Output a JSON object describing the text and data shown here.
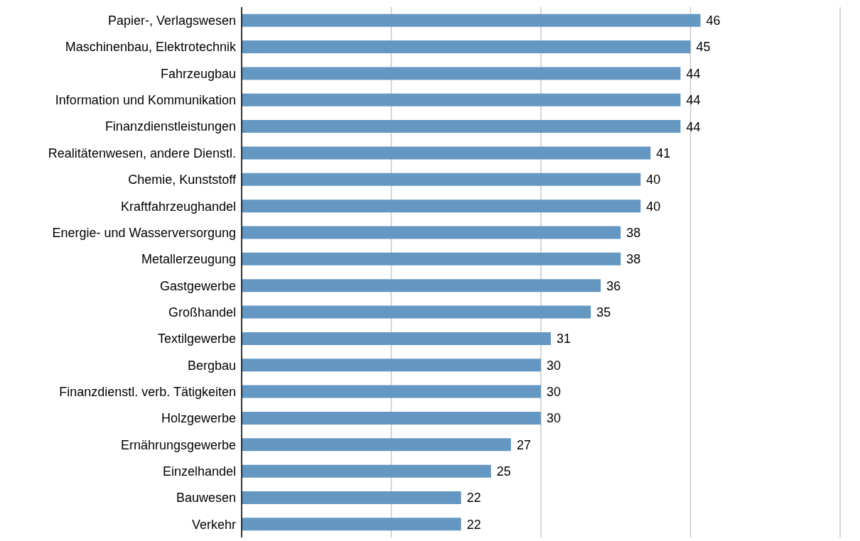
{
  "chart_data": {
    "type": "bar",
    "orientation": "horizontal",
    "categories": [
      "Papier-, Verlagswesen",
      "Maschinenbau, Elektrotechnik",
      "Fahrzeugbau",
      "Information und Kommunikation",
      "Finanzdienstleistungen",
      "Realitätenwesen, andere Dienstl.",
      "Chemie, Kunststoff",
      "Kraftfahrzeughandel",
      "Energie- und Wasserversorgung",
      "Metallerzeugung",
      "Gastgewerbe",
      "Großhandel",
      "Textilgewerbe",
      "Bergbau",
      "Finanzdienstl. verb. Tätigkeiten",
      "Holzgewerbe",
      "Ernährungsgewerbe",
      "Einzelhandel",
      "Bauwesen",
      "Verkehr"
    ],
    "values": [
      46,
      45,
      44,
      44,
      44,
      41,
      40,
      40,
      38,
      38,
      36,
      35,
      31,
      30,
      30,
      30,
      27,
      25,
      22,
      22
    ],
    "color": "#6597c3",
    "tick_labels": "y",
    "grid": "x",
    "data_labels": true
  }
}
